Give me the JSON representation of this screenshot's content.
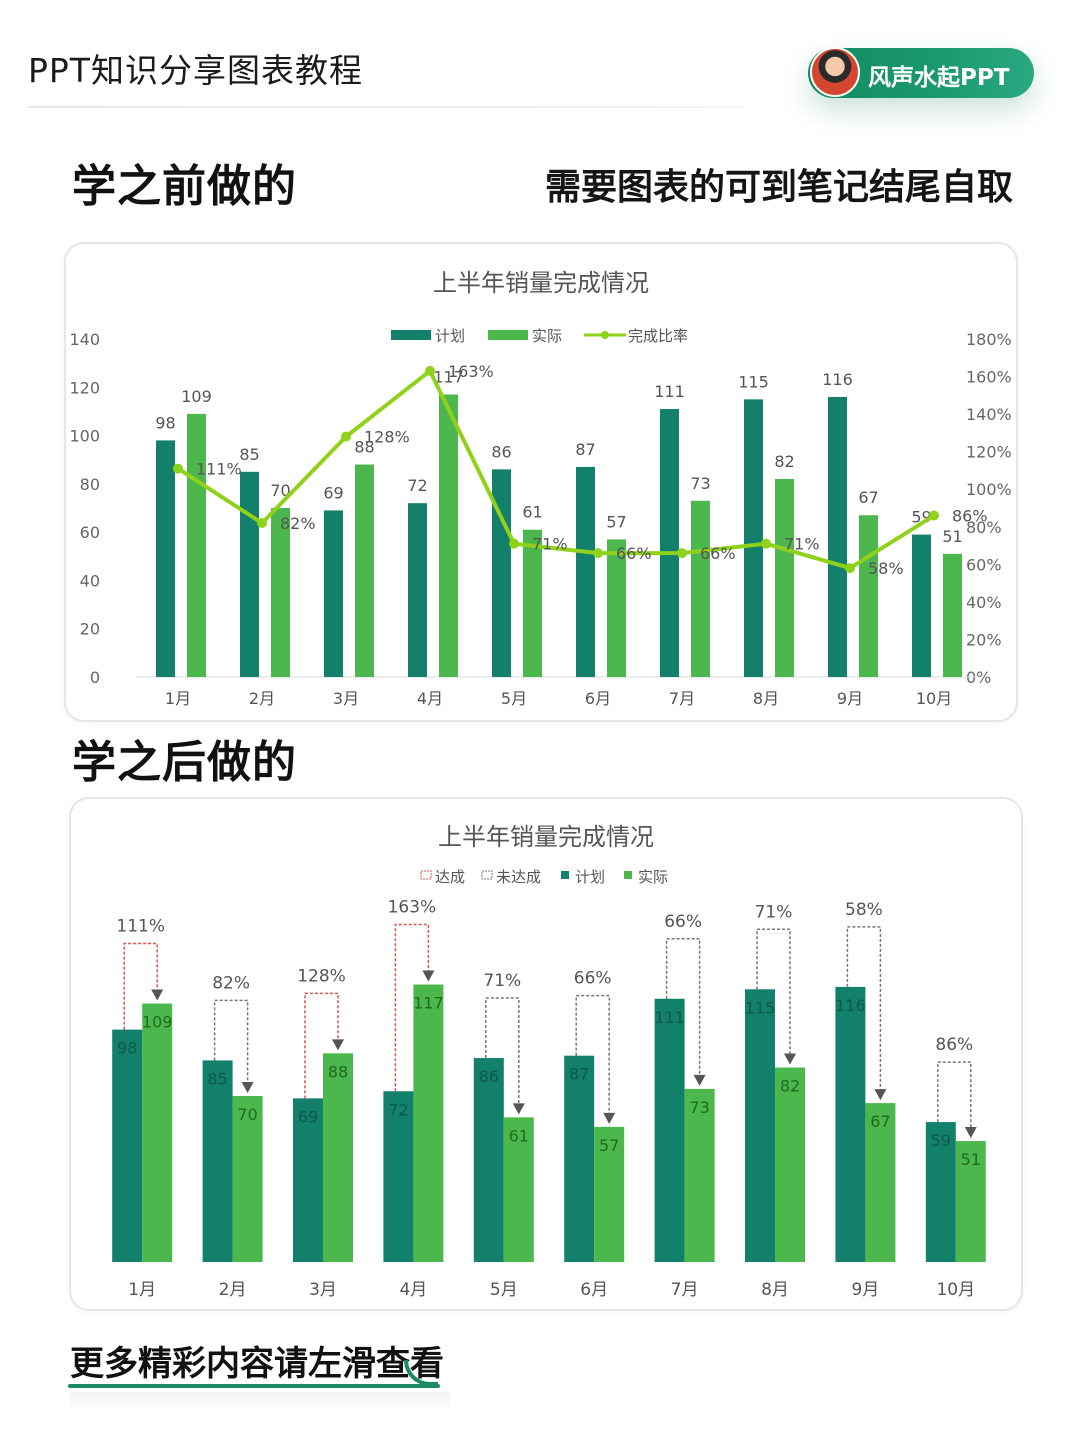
{
  "header": {
    "title": "PPT知识分享图表教程",
    "author": "风声水起PPT"
  },
  "headings": {
    "before": "学之前做的",
    "note": "需要图表的可到笔记结尾自取",
    "after": "学之后做的"
  },
  "footer": {
    "text": "更多精彩内容请左滑查看"
  },
  "colors": {
    "plan": "#12806a",
    "actual": "#4cb74c",
    "ratio_line": "#8fd11b",
    "achieved_arrow": "#d9534f",
    "missed_arrow": "#777777",
    "text": "#555555"
  },
  "chart_data": [
    {
      "type": "bar",
      "title": "上半年销量完成情况",
      "categories": [
        "1月",
        "2月",
        "3月",
        "4月",
        "5月",
        "6月",
        "7月",
        "8月",
        "9月",
        "10月"
      ],
      "legend": [
        "计划",
        "实际",
        "完成比率"
      ],
      "series": [
        {
          "name": "计划",
          "values": [
            98,
            85,
            69,
            72,
            86,
            87,
            111,
            115,
            116,
            59
          ]
        },
        {
          "name": "实际",
          "values": [
            109,
            70,
            88,
            117,
            61,
            57,
            73,
            82,
            67,
            51
          ]
        },
        {
          "name": "完成比率",
          "type": "line",
          "axis": "right",
          "values": [
            111,
            82,
            128,
            163,
            71,
            66,
            66,
            71,
            58,
            86
          ],
          "labels": [
            "111%",
            "82%",
            "128%",
            "163%",
            "71%",
            "66%",
            "66%",
            "71%",
            "58%",
            "86%"
          ]
        }
      ],
      "ylim": [
        0,
        140
      ],
      "yticks": [
        0,
        20,
        40,
        60,
        80,
        100,
        120,
        140
      ],
      "y2lim": [
        0,
        180
      ],
      "y2ticks": [
        "0%",
        "20%",
        "40%",
        "60%",
        "80%",
        "100%",
        "120%",
        "140%",
        "160%",
        "180%"
      ]
    },
    {
      "type": "bar",
      "title": "上半年销量完成情况",
      "categories": [
        "1月",
        "2月",
        "3月",
        "4月",
        "5月",
        "6月",
        "7月",
        "8月",
        "9月",
        "10月"
      ],
      "legend": [
        "达成",
        "未达成",
        "计划",
        "实际"
      ],
      "series": [
        {
          "name": "计划",
          "values": [
            98,
            85,
            69,
            72,
            86,
            87,
            111,
            115,
            116,
            59
          ]
        },
        {
          "name": "实际",
          "values": [
            109,
            70,
            88,
            117,
            61,
            57,
            73,
            82,
            67,
            51
          ]
        }
      ],
      "ratio_labels": [
        "111%",
        "82%",
        "128%",
        "163%",
        "71%",
        "66%",
        "66%",
        "71%",
        "58%",
        "86%"
      ],
      "achieved": [
        true,
        false,
        true,
        true,
        false,
        false,
        false,
        false,
        false,
        false
      ],
      "ylim": [
        0,
        140
      ]
    }
  ]
}
